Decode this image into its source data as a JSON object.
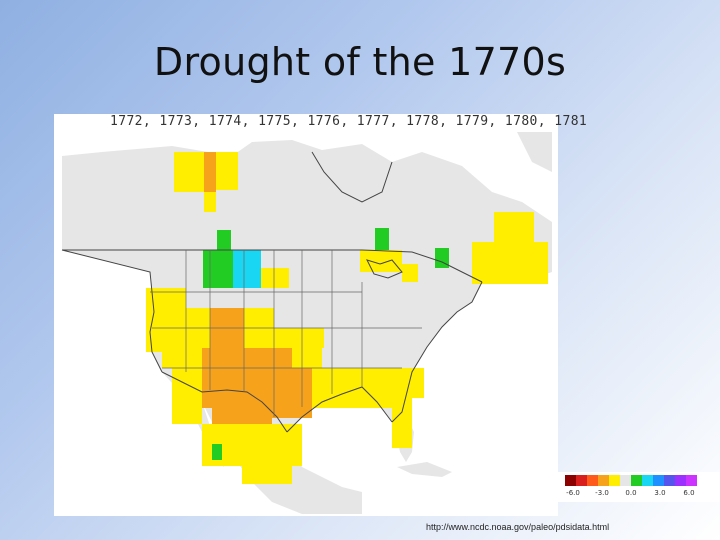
{
  "slide": {
    "title": "Drought of the 1770s",
    "source": "http://www.ncdc.noaa.gov/paleo/pdsidata.html"
  },
  "map": {
    "years": "1772, 1773, 1774, 1775, 1776, 1777, 1778, 1779, 1780, 1781",
    "region": "North America",
    "colors": {
      "land_no_data": "#e6e6e6",
      "yellow": "#ffee00",
      "orange": "#f7a21b",
      "green": "#22cc22",
      "cyan": "#19d6f2",
      "borders": "#444444",
      "water": "#ffffff"
    }
  },
  "legend": {
    "swatches": [
      "#8b0000",
      "#d91e1e",
      "#ff5a1a",
      "#f7a21b",
      "#ffee00",
      "#e6e6e6",
      "#22cc22",
      "#19d6f2",
      "#1e90ff",
      "#5555ee",
      "#9b30ff",
      "#cc33ff"
    ],
    "ticks": [
      "-6.0",
      "-3.0",
      "0.0",
      "3.0",
      "6.0"
    ]
  }
}
